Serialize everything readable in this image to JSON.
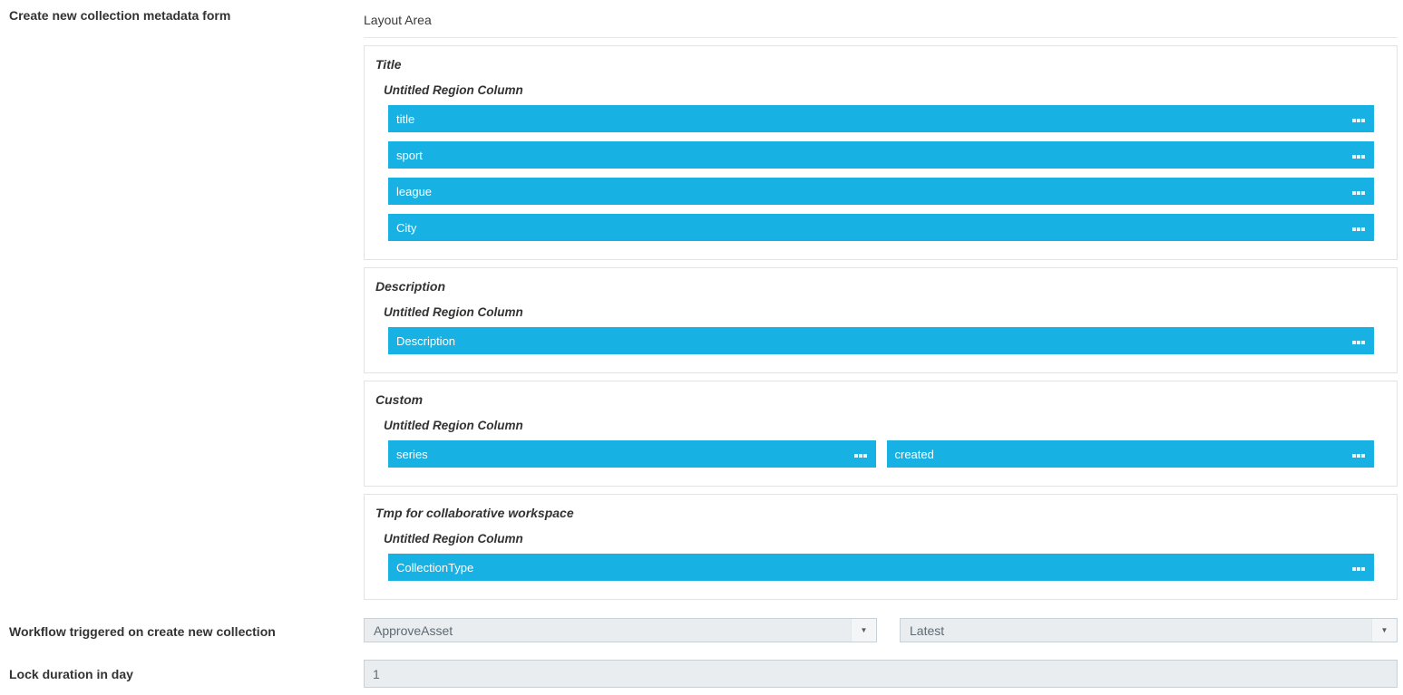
{
  "header": {
    "form_label": "Create new collection metadata form",
    "layout_area_label": "Layout Area"
  },
  "layout_sections": [
    {
      "title": "Title",
      "region_label": "Untitled Region Column",
      "columns": 1,
      "fields": [
        "title",
        "sport",
        "league",
        "City"
      ]
    },
    {
      "title": "Description",
      "region_label": "Untitled Region Column",
      "columns": 1,
      "fields": [
        "Description"
      ]
    },
    {
      "title": "Custom",
      "region_label": "Untitled Region Column",
      "columns": 2,
      "fields": [
        "series",
        "created"
      ]
    },
    {
      "title": "Tmp for collaborative workspace",
      "region_label": "Untitled Region Column",
      "columns": 1,
      "fields": [
        "CollectionType"
      ]
    }
  ],
  "workflow_row": {
    "label": "Workflow triggered on create new collection",
    "selects": [
      {
        "name": "workflow-select",
        "value": "ApproveAsset"
      },
      {
        "name": "workflow-version-select",
        "value": "Latest"
      }
    ]
  },
  "lock_row": {
    "label": "Lock duration in day",
    "value": "1"
  },
  "icons": {
    "field_handle": "drag-handle-icon",
    "select_arrow": "▼"
  },
  "colors": {
    "accent": "#17b1e4",
    "section_border": "#e3e3e3",
    "input_bg": "#e9edf0",
    "input_border": "#c9d1d7"
  }
}
